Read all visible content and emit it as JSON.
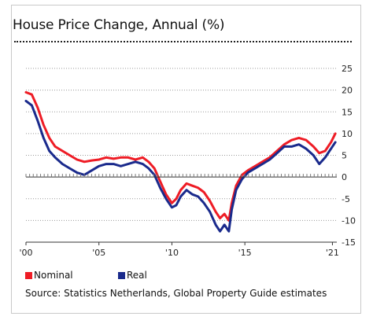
{
  "title": "House Price Change, Annual (%)",
  "source": "Source: Statistics Netherlands, Global Property Guide estimates",
  "legend": [
    {
      "label": "Nominal",
      "color": "#ee1c25"
    },
    {
      "label": "Real",
      "color": "#1a2a8c"
    }
  ],
  "chart_data": {
    "type": "line",
    "title": "House Price Change, Annual (%)",
    "xlabel": "",
    "ylabel": "",
    "xlim": [
      2000,
      2021.3
    ],
    "ylim": [
      -15,
      25
    ],
    "x_ticks": [
      {
        "value": 2000,
        "label": "'00"
      },
      {
        "value": 2005,
        "label": "'05"
      },
      {
        "value": 2010,
        "label": "'10"
      },
      {
        "value": 2015,
        "label": "'15"
      },
      {
        "value": 2021,
        "label": "'21"
      }
    ],
    "y_ticks": [
      25,
      20,
      15,
      10,
      5,
      0,
      -5,
      -10,
      -15
    ],
    "grid": "horizontal dotted",
    "legend_position": "bottom-left",
    "series": [
      {
        "name": "Nominal",
        "color": "#ee1c25",
        "points": [
          [
            2000.0,
            19.5
          ],
          [
            2000.4,
            19.0
          ],
          [
            2000.8,
            16.0
          ],
          [
            2001.2,
            12.0
          ],
          [
            2001.6,
            9.0
          ],
          [
            2002.0,
            7.0
          ],
          [
            2002.5,
            6.0
          ],
          [
            2003.0,
            5.0
          ],
          [
            2003.5,
            4.0
          ],
          [
            2004.0,
            3.5
          ],
          [
            2004.5,
            3.8
          ],
          [
            2005.0,
            4.0
          ],
          [
            2005.5,
            4.5
          ],
          [
            2006.0,
            4.2
          ],
          [
            2006.5,
            4.5
          ],
          [
            2007.0,
            4.5
          ],
          [
            2007.5,
            4.0
          ],
          [
            2008.0,
            4.5
          ],
          [
            2008.4,
            3.5
          ],
          [
            2008.8,
            2.0
          ],
          [
            2009.2,
            -1.0
          ],
          [
            2009.6,
            -4.0
          ],
          [
            2010.0,
            -6.0
          ],
          [
            2010.3,
            -5.0
          ],
          [
            2010.6,
            -3.0
          ],
          [
            2011.0,
            -1.5
          ],
          [
            2011.4,
            -2.0
          ],
          [
            2011.8,
            -2.5
          ],
          [
            2012.2,
            -3.5
          ],
          [
            2012.6,
            -5.5
          ],
          [
            2013.0,
            -8.0
          ],
          [
            2013.3,
            -9.5
          ],
          [
            2013.6,
            -8.5
          ],
          [
            2013.9,
            -10.0
          ],
          [
            2014.1,
            -6.0
          ],
          [
            2014.4,
            -2.0
          ],
          [
            2014.8,
            0.5
          ],
          [
            2015.2,
            1.5
          ],
          [
            2015.7,
            2.5
          ],
          [
            2016.2,
            3.5
          ],
          [
            2016.7,
            4.5
          ],
          [
            2017.2,
            6.0
          ],
          [
            2017.7,
            7.5
          ],
          [
            2018.2,
            8.5
          ],
          [
            2018.7,
            9.0
          ],
          [
            2019.2,
            8.5
          ],
          [
            2019.7,
            7.0
          ],
          [
            2020.1,
            5.5
          ],
          [
            2020.5,
            6.0
          ],
          [
            2020.9,
            8.0
          ],
          [
            2021.2,
            10.0
          ]
        ]
      },
      {
        "name": "Real",
        "color": "#1a2a8c",
        "points": [
          [
            2000.0,
            17.5
          ],
          [
            2000.4,
            16.5
          ],
          [
            2000.8,
            13.0
          ],
          [
            2001.2,
            9.0
          ],
          [
            2001.6,
            6.0
          ],
          [
            2002.0,
            4.5
          ],
          [
            2002.5,
            3.0
          ],
          [
            2003.0,
            2.0
          ],
          [
            2003.5,
            1.0
          ],
          [
            2004.0,
            0.5
          ],
          [
            2004.5,
            1.5
          ],
          [
            2005.0,
            2.5
          ],
          [
            2005.5,
            3.0
          ],
          [
            2006.0,
            3.0
          ],
          [
            2006.5,
            2.5
          ],
          [
            2007.0,
            3.0
          ],
          [
            2007.5,
            3.5
          ],
          [
            2008.0,
            3.0
          ],
          [
            2008.4,
            2.0
          ],
          [
            2008.8,
            0.5
          ],
          [
            2009.2,
            -2.5
          ],
          [
            2009.6,
            -5.0
          ],
          [
            2010.0,
            -7.0
          ],
          [
            2010.3,
            -6.5
          ],
          [
            2010.6,
            -4.5
          ],
          [
            2011.0,
            -3.0
          ],
          [
            2011.4,
            -4.0
          ],
          [
            2011.8,
            -4.5
          ],
          [
            2012.2,
            -6.0
          ],
          [
            2012.6,
            -8.0
          ],
          [
            2013.0,
            -11.0
          ],
          [
            2013.3,
            -12.5
          ],
          [
            2013.6,
            -11.0
          ],
          [
            2013.9,
            -12.5
          ],
          [
            2014.1,
            -7.5
          ],
          [
            2014.4,
            -3.0
          ],
          [
            2014.8,
            -0.5
          ],
          [
            2015.2,
            1.0
          ],
          [
            2015.7,
            2.0
          ],
          [
            2016.2,
            3.0
          ],
          [
            2016.7,
            4.0
          ],
          [
            2017.2,
            5.5
          ],
          [
            2017.7,
            7.0
          ],
          [
            2018.2,
            7.0
          ],
          [
            2018.7,
            7.5
          ],
          [
            2019.2,
            6.5
          ],
          [
            2019.7,
            5.0
          ],
          [
            2020.1,
            3.0
          ],
          [
            2020.5,
            4.5
          ],
          [
            2020.9,
            6.5
          ],
          [
            2021.2,
            8.0
          ]
        ]
      }
    ]
  }
}
